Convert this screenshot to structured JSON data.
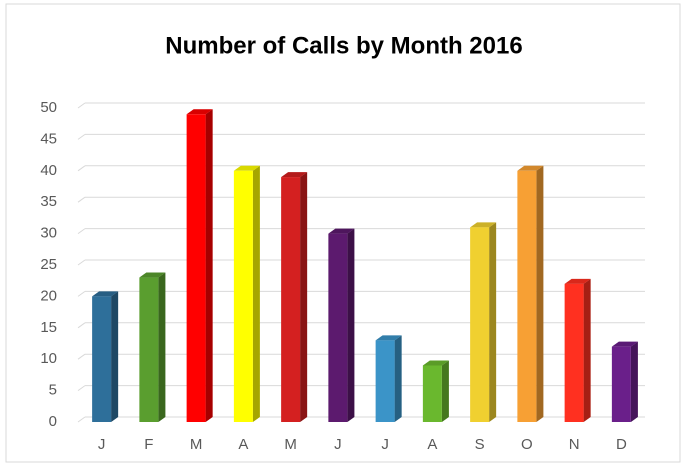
{
  "chart_data": {
    "type": "bar3d",
    "title": "Number of Calls by Month 2016",
    "categories": [
      "J",
      "F",
      "M",
      "A",
      "M",
      "J",
      "J",
      "A",
      "S",
      "O",
      "N",
      "D"
    ],
    "values": [
      20,
      23,
      49,
      40,
      39,
      30,
      13,
      9,
      31,
      40,
      22,
      12
    ],
    "colors": [
      "#2e6f9a",
      "#5a9e2f",
      "#ff0000",
      "#ffff00",
      "#d42020",
      "#5c1a6e",
      "#3b94c8",
      "#6ab82e",
      "#f0d030",
      "#f7a034",
      "#ff3020",
      "#6a1f8a"
    ],
    "ylim": [
      0,
      50
    ],
    "yticks": [
      0,
      5,
      10,
      15,
      20,
      25,
      30,
      35,
      40,
      45,
      50
    ],
    "grid": true
  }
}
